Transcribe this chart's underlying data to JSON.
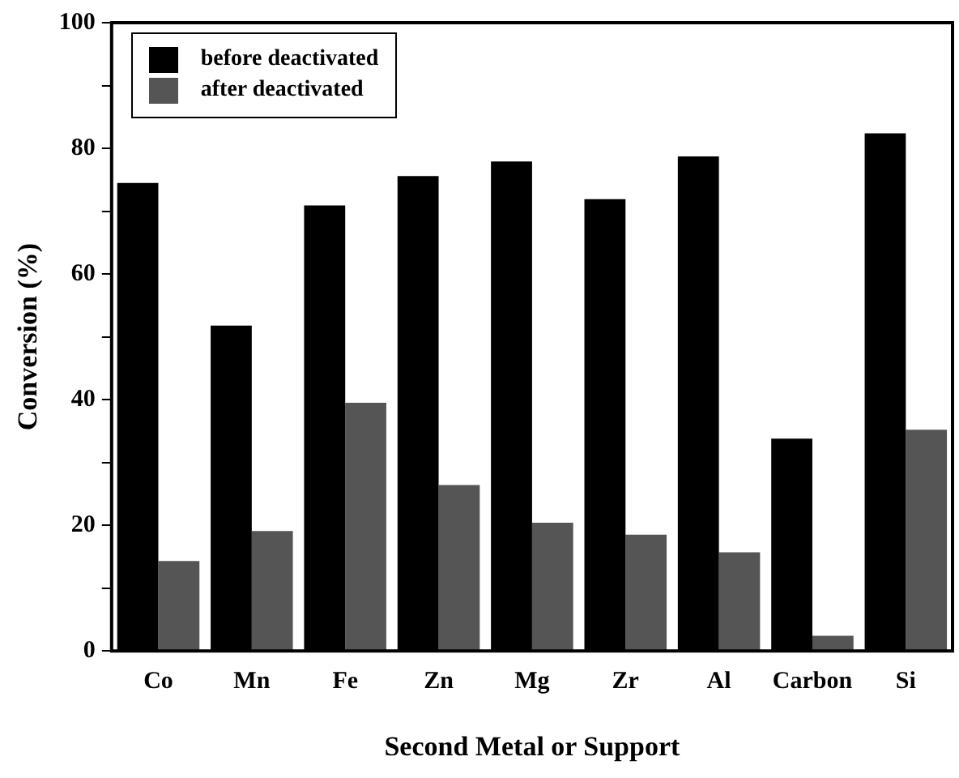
{
  "chart_data": {
    "type": "bar",
    "xlabel": "Second Metal or Support",
    "ylabel": "Conversion (%)",
    "categories": [
      "Co",
      "Mn",
      "Fe",
      "Zn",
      "Mg",
      "Zr",
      "Al",
      "Carbon",
      "Si"
    ],
    "series": [
      {
        "name": "before deactivated",
        "color": "#000000",
        "values": [
          74.5,
          51.8,
          70.9,
          75.6,
          77.9,
          71.9,
          78.7,
          33.8,
          82.4
        ]
      },
      {
        "name": "after deactivated",
        "color": "#555555",
        "values": [
          14.3,
          19.1,
          39.5,
          26.4,
          20.4,
          18.5,
          15.7,
          2.4,
          35.2
        ]
      }
    ],
    "ylim": [
      0,
      100
    ],
    "yticks": [
      0,
      {
        "value": 10,
        "label": null
      },
      20,
      {
        "value": 30,
        "label": null
      },
      40,
      {
        "value": 50,
        "label": null
      },
      60,
      {
        "value": 70,
        "label": null
      },
      80,
      {
        "value": 90,
        "label": null
      },
      100
    ],
    "grid": false,
    "legend": "top left"
  }
}
